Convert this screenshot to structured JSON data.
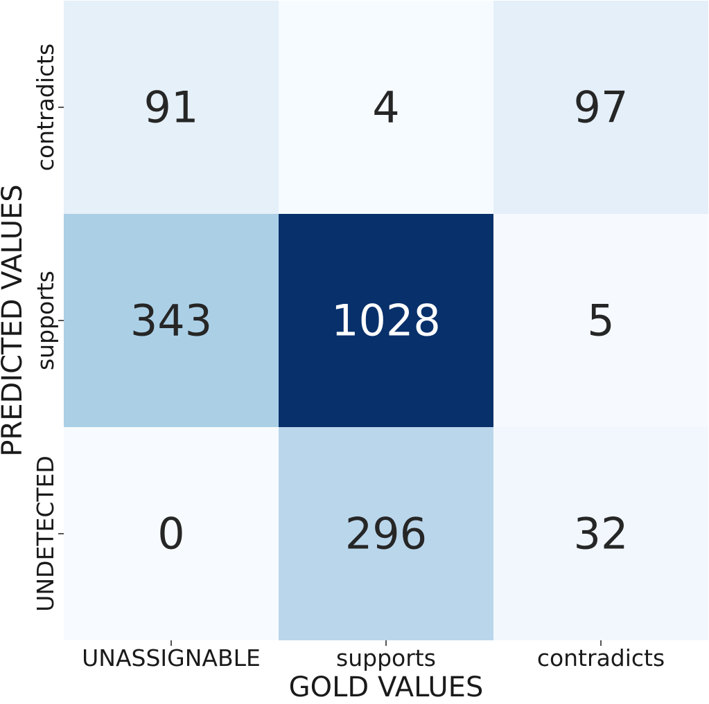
{
  "chart_data": {
    "type": "heatmap",
    "xlabel": "GOLD VALUES",
    "ylabel": "PREDICTED VALUES",
    "x_categories": [
      "UNASSIGNABLE",
      "supports",
      "contradicts"
    ],
    "y_categories": [
      "contradicts",
      "supports",
      "UNDETECTED"
    ],
    "values": [
      [
        91,
        4,
        97
      ],
      [
        343,
        1028,
        5
      ],
      [
        0,
        296,
        32
      ]
    ],
    "colormap": "Blues",
    "color_range": [
      0,
      1028
    ],
    "colors": {
      "low": "#f7fbff",
      "high": "#08306b",
      "dark_text": "#262626",
      "light_text": "#ffffff"
    }
  }
}
